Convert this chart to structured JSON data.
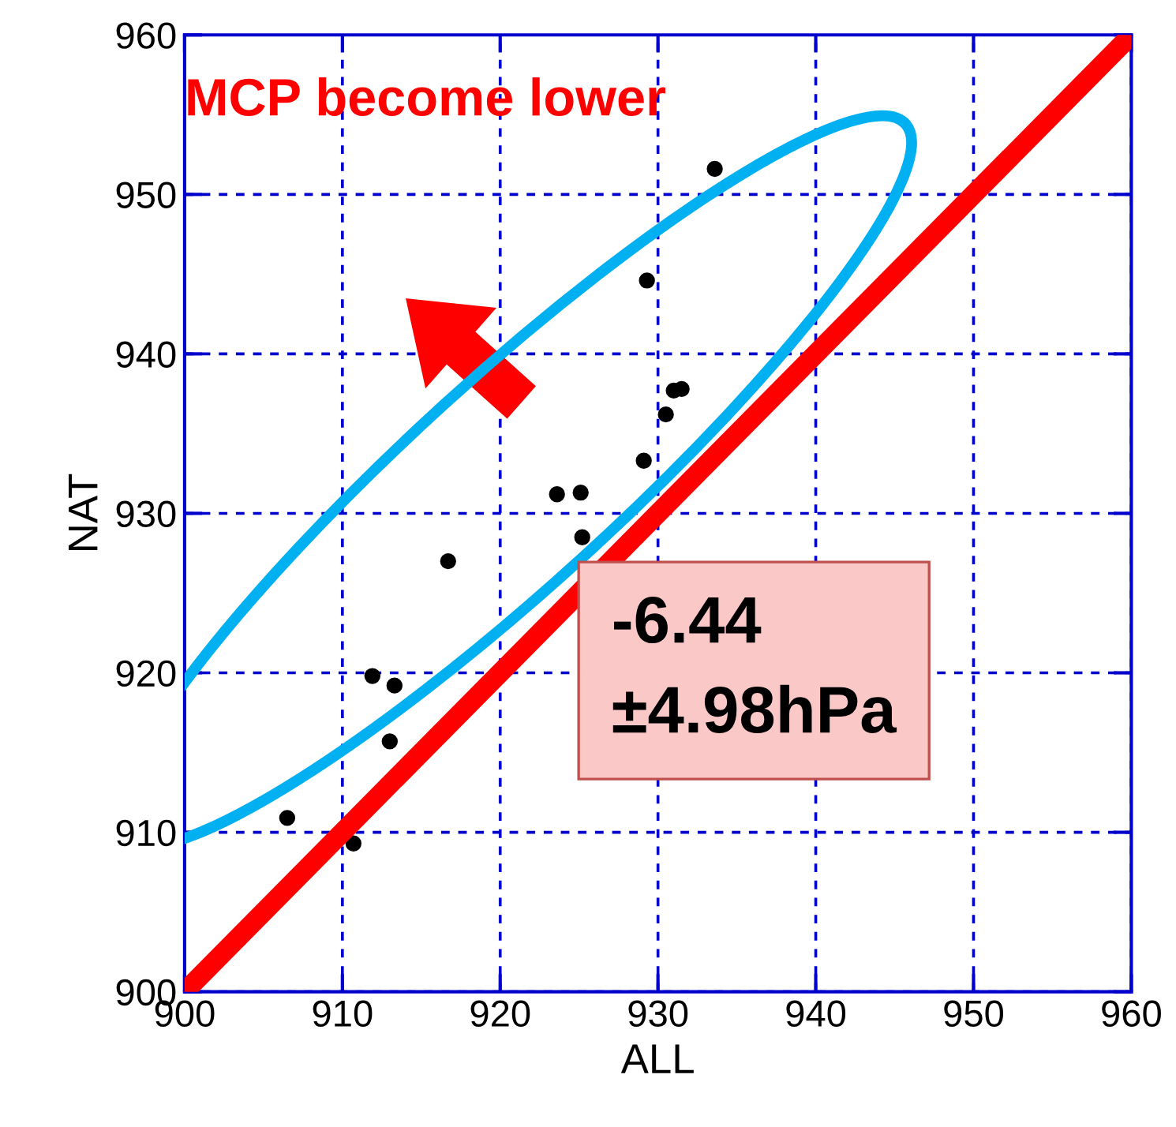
{
  "chart_data": {
    "type": "scatter",
    "xlabel": "ALL",
    "ylabel": "NAT",
    "xlim": [
      900,
      960
    ],
    "xticks": [
      900,
      910,
      920,
      930,
      940,
      950,
      960
    ],
    "ylim": [
      900,
      960
    ],
    "yticks": [
      900,
      910,
      920,
      930,
      940,
      950,
      960
    ],
    "grid": true,
    "legend": false,
    "series": [
      {
        "color": "#000000",
        "marker": "circle",
        "x": [
          933.6,
          929.3,
          931.0,
          931.5,
          930.5,
          929.1,
          923.6,
          925.1,
          925.2,
          916.7,
          911.9,
          913.3,
          913.0,
          906.5,
          910.7
        ],
        "values": [
          951.6,
          944.6,
          937.7,
          937.8,
          936.2,
          933.3,
          931.2,
          931.3,
          928.5,
          927.0,
          919.8,
          919.2,
          915.7,
          910.9,
          909.3
        ]
      },
      {
        "type": "line",
        "color": "#ff0000",
        "marker": "none",
        "line_style": "solid",
        "x": [
          900,
          960
        ],
        "values": [
          900,
          960
        ]
      }
    ],
    "annotations": [
      "MCP become lower",
      "-6.44\n±4.98hPa"
    ]
  }
}
